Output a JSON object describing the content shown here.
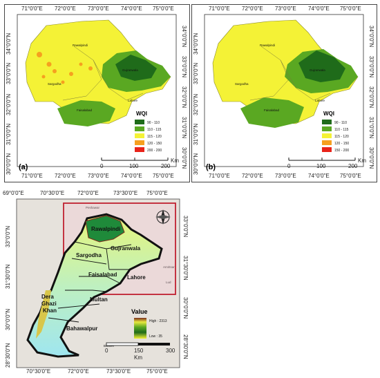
{
  "panels": {
    "a": {
      "label": "(a)",
      "lon_ticks": [
        "71°0'0\"E",
        "72°0'0\"E",
        "73°0'0\"E",
        "74°0'0\"E",
        "75°0'0\"E"
      ],
      "lat_ticks": [
        "34°0'0\"N",
        "33°0'0\"N",
        "32°0'0\"N",
        "31°0'0\"N",
        "30°0'0\"N"
      ],
      "cities": [
        "Rawalpindi",
        "Sargodha",
        "Gujranwala",
        "Lahore",
        "Faisalabad"
      ],
      "legend_title": "WQI",
      "legend_items": [
        {
          "label": "90 - 110",
          "color": "#1f6b1a"
        },
        {
          "label": "110 - 115",
          "color": "#5aa822"
        },
        {
          "label": "115 - 120",
          "color": "#f4f236"
        },
        {
          "label": "120 - 150",
          "color": "#f6a01f"
        },
        {
          "label": "200 - 200",
          "color": "#e8231a"
        }
      ],
      "scale_ticks": [
        "0",
        "100",
        "200"
      ],
      "scale_unit": "Km"
    },
    "b": {
      "label": "(b)",
      "lon_ticks": [
        "71°0'0\"E",
        "72°0'0\"E",
        "73°0'0\"E",
        "74°0'0\"E",
        "75°0'0\"E"
      ],
      "lat_ticks": [
        "34°0'0\"N",
        "33°0'0\"N",
        "32°0'0\"N",
        "31°0'0\"N",
        "30°0'0\"N"
      ],
      "cities": [
        "Rawalpindi",
        "Sargodha",
        "Gujranwala",
        "Lahore",
        "Faisalabad"
      ],
      "legend_title": "WQI",
      "legend_items": [
        {
          "label": "90 - 110",
          "color": "#1f6b1a"
        },
        {
          "label": "110 - 115",
          "color": "#5aa822"
        },
        {
          "label": "115 - 120",
          "color": "#f4f236"
        },
        {
          "label": "120 - 150",
          "color": "#f6a01f"
        },
        {
          "label": "150 - 200",
          "color": "#e8231a"
        }
      ],
      "scale_ticks": [
        "0",
        "100",
        "200"
      ],
      "scale_unit": "Km"
    },
    "c": {
      "lon_ticks_top": [
        "69°0'0\"E",
        "70°30'0\"E",
        "72°0'0\"E",
        "73°30'0\"E",
        "75°0'0\"E"
      ],
      "lon_ticks_bottom": [
        "70°30'0\"E",
        "72°0'0\"E",
        "73°30'0\"E",
        "75°0'0\"E"
      ],
      "lat_ticks_left": [
        "33°0'0\"N",
        "31°30'0\"N",
        "30°0'0\"N",
        "28°30'0\"N"
      ],
      "lat_ticks_right": [
        "33°0'0\"N",
        "31°30'0\"N",
        "30°0'0\"N",
        "28°30'0\"N"
      ],
      "cities": [
        "Rawalpindi",
        "Gujranwala",
        "Sargodha",
        "Faisalabad",
        "Lahore",
        "Multan",
        "Dera",
        "Ghazi",
        "Khan",
        "Bahawalpur"
      ],
      "basemap_labels": [
        "Peshawar",
        "Amritsar",
        "Lud",
        "Bikaner"
      ],
      "legend_title": "Value",
      "legend_high": "High : 2313",
      "legend_low": "Low : 35",
      "scale_ticks": [
        "0",
        "150",
        "300"
      ],
      "scale_unit": "Km"
    }
  }
}
